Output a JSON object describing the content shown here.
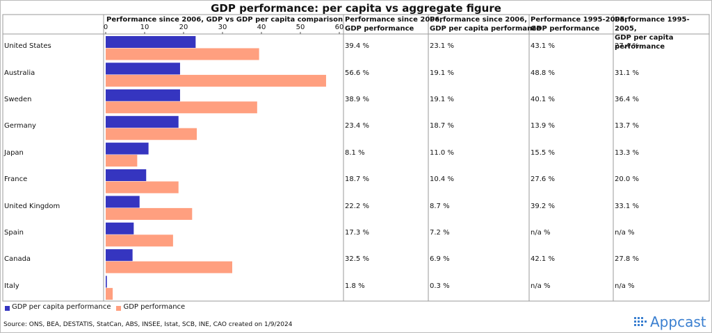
{
  "title": "GDP performance: per capita vs aggregate figure",
  "chart_data": {
    "type": "bar",
    "orientation": "horizontal",
    "title": "Performance since 2006, GDP vs GDP per capita comparison",
    "categories": [
      "United States",
      "Australia",
      "Sweden",
      "Germany",
      "Japan",
      "France",
      "United Kingdom",
      "Spain",
      "Canada",
      "Italy"
    ],
    "series": [
      {
        "name": "GDP per capita performance",
        "color": "#3535c0",
        "values": [
          23.1,
          19.1,
          19.1,
          18.7,
          11.0,
          10.4,
          8.7,
          7.2,
          6.9,
          0.3
        ]
      },
      {
        "name": "GDP performance",
        "color": "#ff9f7f",
        "values": [
          39.4,
          56.6,
          38.9,
          23.4,
          8.1,
          18.7,
          22.2,
          17.3,
          32.5,
          1.8
        ]
      }
    ],
    "xlim": [
      0,
      60
    ],
    "xticks": [
      0,
      10,
      20,
      30,
      40,
      50,
      60
    ]
  },
  "table": {
    "columns": [
      "Performance since 2006,\nGDP performance",
      "Performance since 2006,\nGDP per capita performance",
      "Performance 1995-2005,\nGDP performance",
      "Performance 1995-2005,\nGDP per capita performance"
    ],
    "rows": [
      [
        "39.4 %",
        "23.1 %",
        "43.1 %",
        "27.4 %"
      ],
      [
        "56.6 %",
        "19.1 %",
        "48.8 %",
        "31.1 %"
      ],
      [
        "38.9 %",
        "19.1 %",
        "40.1 %",
        "36.4 %"
      ],
      [
        "23.4 %",
        "18.7 %",
        "13.9 %",
        "13.7 %"
      ],
      [
        "8.1 %",
        "11.0 %",
        "15.5 %",
        "13.3 %"
      ],
      [
        "18.7 %",
        "10.4 %",
        "27.6 %",
        "20.0 %"
      ],
      [
        "22.2 %",
        "8.7 %",
        "39.2 %",
        "33.1 %"
      ],
      [
        "17.3 %",
        "7.2 %",
        "n/a %",
        "n/a %"
      ],
      [
        "32.5 %",
        "6.9 %",
        "42.1 %",
        "27.8 %"
      ],
      [
        "1.8 %",
        "0.3 %",
        "n/a %",
        "n/a %"
      ]
    ]
  },
  "source": "Source: ONS, BEA, DESTATIS, StatCan, ABS, INSEE, Istat, SCB, INE, CAO created on 1/9/2024",
  "logo": "Appcast"
}
